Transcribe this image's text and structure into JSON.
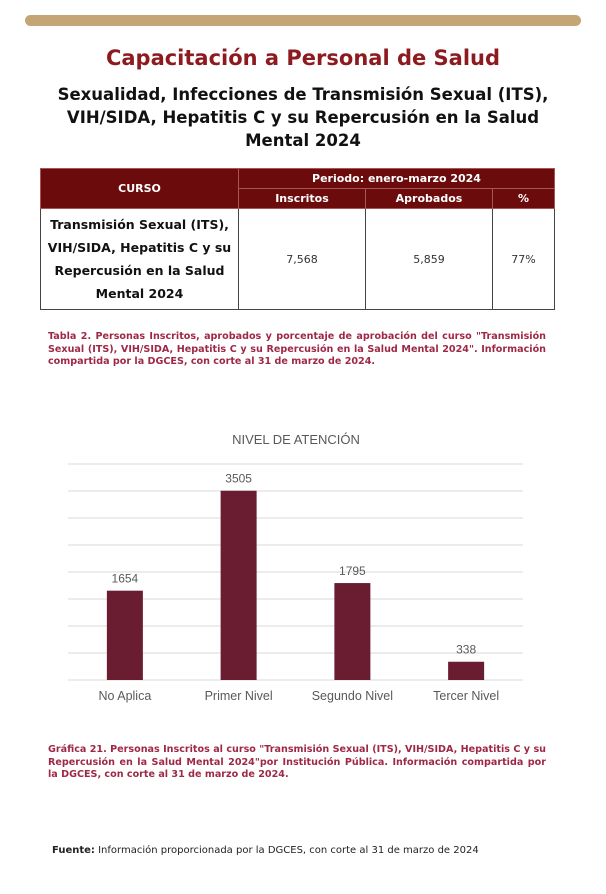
{
  "header": {
    "title": "Capacitación a Personal de Salud",
    "subtitle": "Sexualidad, Infecciones de Transmisión Sexual (ITS), VIH/SIDA, Hepatitis C y su Repercusión en la Salud Mental 2024"
  },
  "table": {
    "col_course": "CURSO",
    "period": "Periodo: enero-marzo 2024",
    "cols": [
      "Inscritos",
      "Aprobados",
      "%"
    ],
    "row": {
      "course": "Transmisión Sexual (ITS), VIH/SIDA, Hepatitis C y su Repercusión en la Salud Mental 2024",
      "inscritos": "7,568",
      "aprobados": "5,859",
      "pct": "77%"
    }
  },
  "table_caption": "Tabla 2. Personas Inscritos, aprobados y porcentaje de aprobación del curso \"Transmisión Sexual (ITS), VIH/SIDA, Hepatitis C y su Repercusión en la Salud Mental 2024\". Información compartida por la DGCES, con corte al 31 de marzo de 2024.",
  "chart_data": {
    "type": "bar",
    "title": "NIVEL DE ATENCIÓN",
    "categories": [
      "No Aplica",
      "Primer Nivel",
      "Segundo Nivel",
      "Tercer Nivel"
    ],
    "values": [
      1654,
      3505,
      1795,
      338
    ],
    "ylim": [
      0,
      4000
    ],
    "grid": true,
    "bar_color": "#6a1d31"
  },
  "chart_caption": "Gráfica 21. Personas Inscritos al curso \"Transmisión Sexual (ITS), VIH/SIDA, Hepatitis C y su Repercusión en la Salud Mental 2024\"por Institución Pública. Información compartida por la DGCES, con corte al 31 de marzo de 2024.",
  "footer": {
    "label": "Fuente:",
    "text": "Información proporcionada por la DGCES, con corte al 31 de marzo de 2024"
  }
}
